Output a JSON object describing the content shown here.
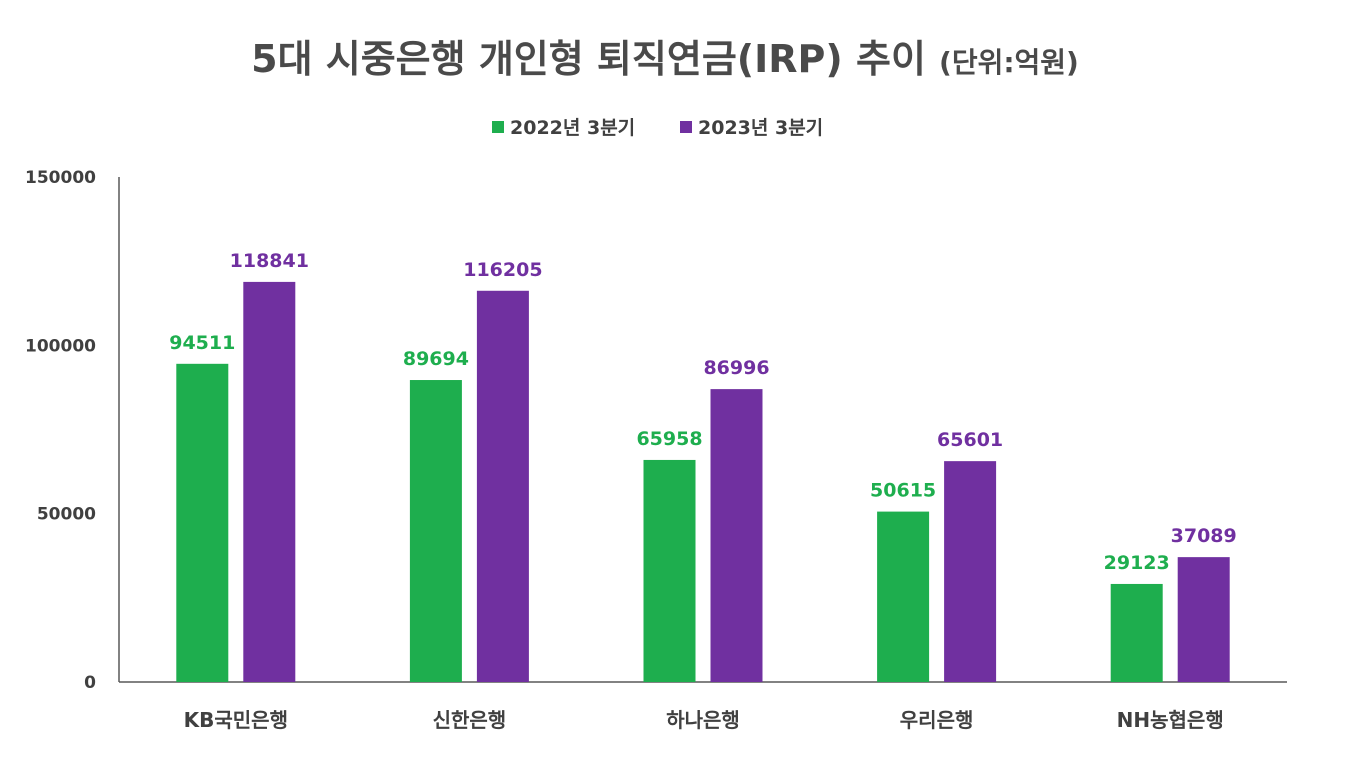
{
  "chart_data": {
    "type": "bar",
    "title": "5대 시중은행 개인형 퇴직연금(IRP) 추이",
    "subtitle": "(단위:억원)",
    "categories": [
      "KB국민은행",
      "신한은행",
      "하나은행",
      "우리은행",
      "NH농협은행"
    ],
    "series": [
      {
        "name": "2022년 3분기",
        "color": "#1eae4e",
        "values": [
          94511,
          89694,
          65958,
          50615,
          29123
        ]
      },
      {
        "name": "2023년 3분기",
        "color": "#7030a0",
        "values": [
          118841,
          116205,
          86996,
          65601,
          37089
        ]
      }
    ],
    "ylim": [
      0,
      150000
    ],
    "yticks": [
      0,
      50000,
      100000,
      150000
    ],
    "xlabel": "",
    "ylabel": "",
    "legend_position": "top-center",
    "grid": false
  }
}
